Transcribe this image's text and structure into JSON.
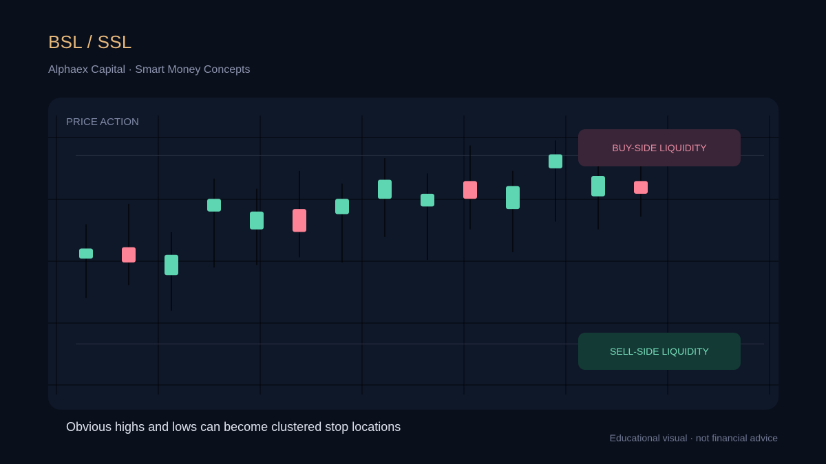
{
  "header": {
    "title": "BSL / SSL",
    "subtitle": "Alphaex Capital · Smart Money Concepts"
  },
  "panel": {
    "label": "PRICE ACTION",
    "buy_side_label": "BUY-SIDE LIQUIDITY",
    "sell_side_label": "SELL-SIDE LIQUIDITY"
  },
  "caption": "Obvious highs and lows can become clustered stop locations",
  "footer": "Educational visual · not financial advice",
  "colors": {
    "background": "#0a0f1c",
    "panel": "#0f1829",
    "bullish": "#5fd6b2",
    "bearish": "#ff8396",
    "title": "#e7b97c"
  },
  "chart_data": {
    "type": "candlestick",
    "title": "",
    "xlabel": "",
    "ylabel": "",
    "ylim": [
      0,
      100
    ],
    "grid": true,
    "buy_side_liquidity_level": 88,
    "sell_side_liquidity_level": 14,
    "candles": [
      {
        "open": 47.5,
        "close": 51.5,
        "high": 61,
        "low": 32,
        "direction": "bullish"
      },
      {
        "open": 52,
        "close": 46,
        "high": 69,
        "low": 37,
        "direction": "bearish"
      },
      {
        "open": 41,
        "close": 49,
        "high": 58,
        "low": 27,
        "direction": "bullish"
      },
      {
        "open": 66,
        "close": 71,
        "high": 79,
        "low": 44,
        "direction": "bullish"
      },
      {
        "open": 59,
        "close": 66,
        "high": 75,
        "low": 45,
        "direction": "bullish"
      },
      {
        "open": 67,
        "close": 58,
        "high": 82,
        "low": 48,
        "direction": "bearish"
      },
      {
        "open": 65,
        "close": 71,
        "high": 77,
        "low": 46,
        "direction": "bullish"
      },
      {
        "open": 71,
        "close": 78.5,
        "high": 87,
        "low": 56,
        "direction": "bullish"
      },
      {
        "open": 68,
        "close": 73,
        "high": 81,
        "low": 47,
        "direction": "bullish"
      },
      {
        "open": 78,
        "close": 71,
        "high": 92,
        "low": 59,
        "direction": "bearish"
      },
      {
        "open": 67,
        "close": 76,
        "high": 82,
        "low": 50,
        "direction": "bullish"
      },
      {
        "open": 83,
        "close": 88.5,
        "high": 94,
        "low": 62,
        "direction": "bullish"
      },
      {
        "open": 72,
        "close": 80,
        "high": 90,
        "low": 59,
        "direction": "bullish"
      },
      {
        "open": 78,
        "close": 73,
        "high": 95,
        "low": 64,
        "direction": "bearish"
      }
    ]
  }
}
